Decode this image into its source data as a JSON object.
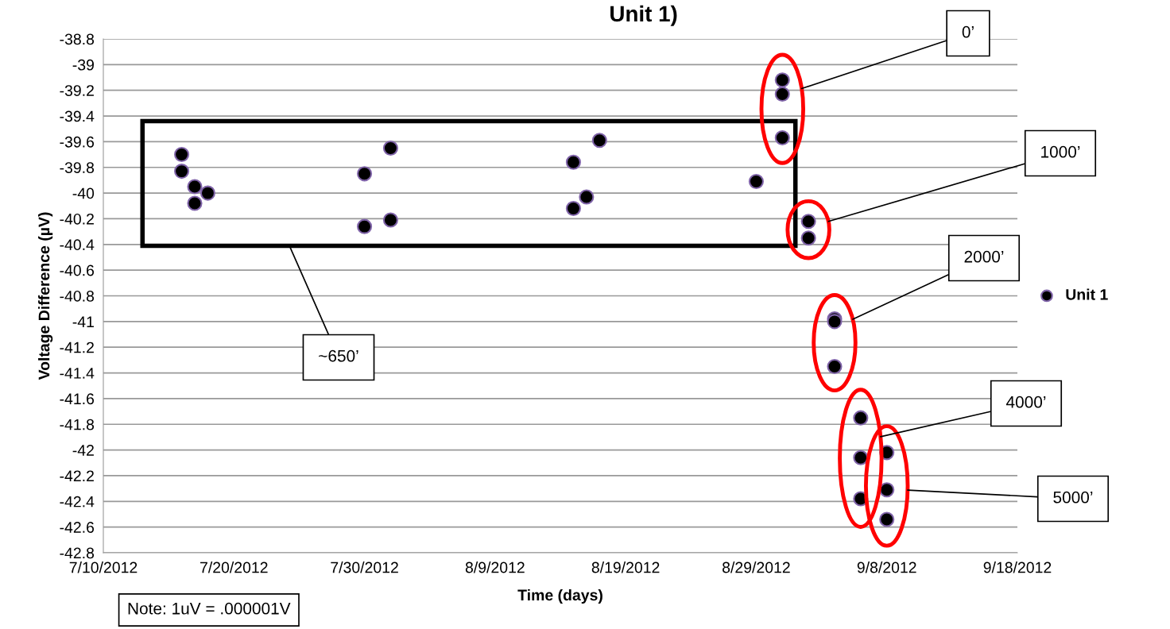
{
  "chart_data": {
    "type": "scatter",
    "title": "Unit 1)",
    "xlabel": "Time (days)",
    "ylabel": "Voltage Difference (µV)",
    "x": [
      "2012-07-16",
      "2012-07-16",
      "2012-07-17",
      "2012-07-17",
      "2012-07-18",
      "2012-07-30",
      "2012-07-30",
      "2012-08-01",
      "2012-08-01",
      "2012-08-15",
      "2012-08-15",
      "2012-08-16",
      "2012-08-17",
      "2012-08-29",
      "2012-08-31",
      "2012-08-31",
      "2012-08-31",
      "2012-09-02",
      "2012-09-02",
      "2012-09-04",
      "2012-09-04",
      "2012-09-04",
      "2012-09-06",
      "2012-09-06",
      "2012-09-06",
      "2012-09-08",
      "2012-09-08",
      "2012-09-08"
    ],
    "series": [
      {
        "name": "Unit 1",
        "color": "#000000",
        "values": [
          -39.7,
          -39.83,
          -39.95,
          -40.08,
          -40.0,
          -39.85,
          -40.26,
          -39.65,
          -40.21,
          -39.76,
          -40.12,
          -40.03,
          -39.59,
          -39.91,
          -39.12,
          -39.23,
          -39.57,
          -40.22,
          -40.35,
          -40.98,
          -41.0,
          -41.35,
          -41.75,
          -42.06,
          -42.38,
          -42.02,
          -42.31,
          -42.54
        ]
      }
    ],
    "marker": "circle",
    "grid": "y",
    "legend": "right",
    "xlim": [
      "2012-07-10",
      "2012-09-18"
    ],
    "xticks": [
      {
        "value": "2012-07-10",
        "label": "7/10/2012"
      },
      {
        "value": "2012-07-20",
        "label": "7/20/2012"
      },
      {
        "value": "2012-07-30",
        "label": "7/30/2012"
      },
      {
        "value": "2012-08-09",
        "label": "8/9/2012"
      },
      {
        "value": "2012-08-19",
        "label": "8/19/2012"
      },
      {
        "value": "2012-08-29",
        "label": "8/29/2012"
      },
      {
        "value": "2012-09-08",
        "label": "9/8/2012"
      },
      {
        "value": "2012-09-18",
        "label": "9/18/2012"
      }
    ],
    "ylim": [
      -42.8,
      -38.8
    ],
    "yticks": [
      -42.8,
      -42.6,
      -42.4,
      -42.2,
      -42,
      -41.8,
      -41.6,
      -41.4,
      -41.2,
      -41,
      -40.8,
      -40.6,
      -40.4,
      -40.2,
      -40,
      -39.8,
      -39.6,
      -39.4,
      -39.2,
      -39,
      -38.8
    ],
    "annotations": [
      "0’",
      "1000’",
      "2000’",
      "4000’",
      "5000’",
      "~650’",
      "Note: 1uV = .000001V"
    ]
  }
}
